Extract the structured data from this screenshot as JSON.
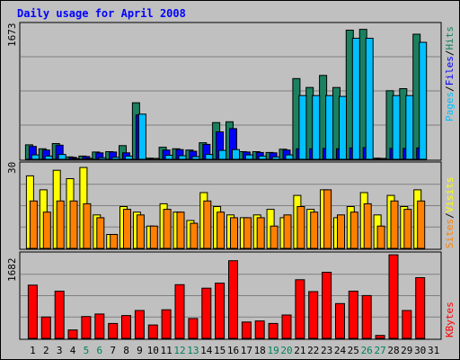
{
  "chart_data": [
    {
      "type": "bar",
      "panel": "hits-files-pages",
      "title": "Daily usage for April 2008",
      "ymax_label": "1673",
      "ylim": [
        0,
        1673
      ],
      "grid": true,
      "categories": [
        "1",
        "2",
        "3",
        "4",
        "5",
        "6",
        "7",
        "8",
        "9",
        "10",
        "11",
        "12",
        "13",
        "14",
        "15",
        "16",
        "17",
        "18",
        "19",
        "20",
        "21",
        "22",
        "23",
        "24",
        "25",
        "26",
        "27",
        "28",
        "29",
        "30",
        "31"
      ],
      "legend": [
        "Pages",
        "/",
        "Files",
        "/",
        "Hits"
      ],
      "series": [
        {
          "name": "Hits",
          "color": "#1a8060",
          "values": [
            180,
            130,
            195,
            30,
            40,
            90,
            95,
            170,
            700,
            15,
            150,
            130,
            115,
            205,
            455,
            465,
            95,
            95,
            85,
            125,
            1000,
            890,
            1040,
            890,
            1600,
            1610,
            15,
            850,
            875,
            1550,
            0
          ]
        },
        {
          "name": "Files",
          "color": "#0000ff",
          "values": [
            160,
            115,
            175,
            25,
            35,
            80,
            90,
            80,
            550,
            10,
            115,
            120,
            100,
            185,
            340,
            380,
            90,
            85,
            80,
            115,
            130,
            130,
            135,
            130,
            140,
            145,
            10,
            135,
            135,
            140,
            0
          ]
        },
        {
          "name": "Pages",
          "color": "#00c0ff",
          "values": [
            55,
            40,
            60,
            10,
            10,
            20,
            25,
            40,
            560,
            5,
            50,
            45,
            35,
            60,
            110,
            120,
            55,
            40,
            30,
            55,
            790,
            790,
            790,
            780,
            1500,
            1500,
            5,
            790,
            790,
            1450,
            0
          ]
        }
      ]
    },
    {
      "type": "bar",
      "panel": "visits-sites",
      "ymax_label": "30",
      "ylim": [
        0,
        30
      ],
      "grid": true,
      "categories": [
        "1",
        "2",
        "3",
        "4",
        "5",
        "6",
        "7",
        "8",
        "9",
        "10",
        "11",
        "12",
        "13",
        "14",
        "15",
        "16",
        "17",
        "18",
        "19",
        "20",
        "21",
        "22",
        "23",
        "24",
        "25",
        "26",
        "27",
        "28",
        "29",
        "30",
        "31"
      ],
      "legend": [
        "Sites",
        "/",
        "Visits"
      ],
      "series": [
        {
          "name": "Visits",
          "color": "#ffff00",
          "values": [
            26,
            21,
            28,
            25,
            29,
            12,
            5,
            15,
            13,
            8,
            16,
            13,
            10,
            20,
            15,
            12,
            11,
            12,
            14,
            11,
            19,
            14,
            21,
            11,
            15,
            20,
            12,
            19,
            15,
            21,
            0
          ]
        },
        {
          "name": "Sites",
          "color": "#ff8000",
          "values": [
            17,
            13,
            17,
            17,
            16,
            11,
            5,
            14,
            12,
            8,
            14,
            13,
            9,
            17,
            13,
            11,
            11,
            11,
            8,
            12,
            15,
            13,
            21,
            12,
            13,
            16,
            8,
            17,
            14,
            17,
            0
          ]
        }
      ]
    },
    {
      "type": "bar",
      "panel": "kbytes",
      "ymax_label": "1682",
      "ylim": [
        0,
        1682
      ],
      "grid": true,
      "categories": [
        "1",
        "2",
        "3",
        "4",
        "5",
        "6",
        "7",
        "8",
        "9",
        "10",
        "11",
        "12",
        "13",
        "14",
        "15",
        "16",
        "17",
        "18",
        "19",
        "20",
        "21",
        "22",
        "23",
        "24",
        "25",
        "26",
        "27",
        "28",
        "29",
        "30",
        "31"
      ],
      "legend": [
        "KBytes"
      ],
      "series": [
        {
          "name": "KBytes",
          "color": "#ff0000",
          "values": [
            1070,
            430,
            950,
            170,
            440,
            490,
            300,
            460,
            560,
            270,
            575,
            1080,
            400,
            1010,
            1110,
            1560,
            330,
            350,
            300,
            470,
            1180,
            940,
            1330,
            700,
            950,
            860,
            60,
            1680,
            560,
            1220,
            0
          ]
        }
      ]
    }
  ],
  "colors": {
    "background": "#c0c0c0",
    "title": "#0000ff",
    "weekend_label": "#00805c",
    "weekday_label": "#000000",
    "grid": "#808080"
  },
  "weekend_days": [
    5,
    6,
    12,
    13,
    19,
    20,
    26,
    27
  ]
}
